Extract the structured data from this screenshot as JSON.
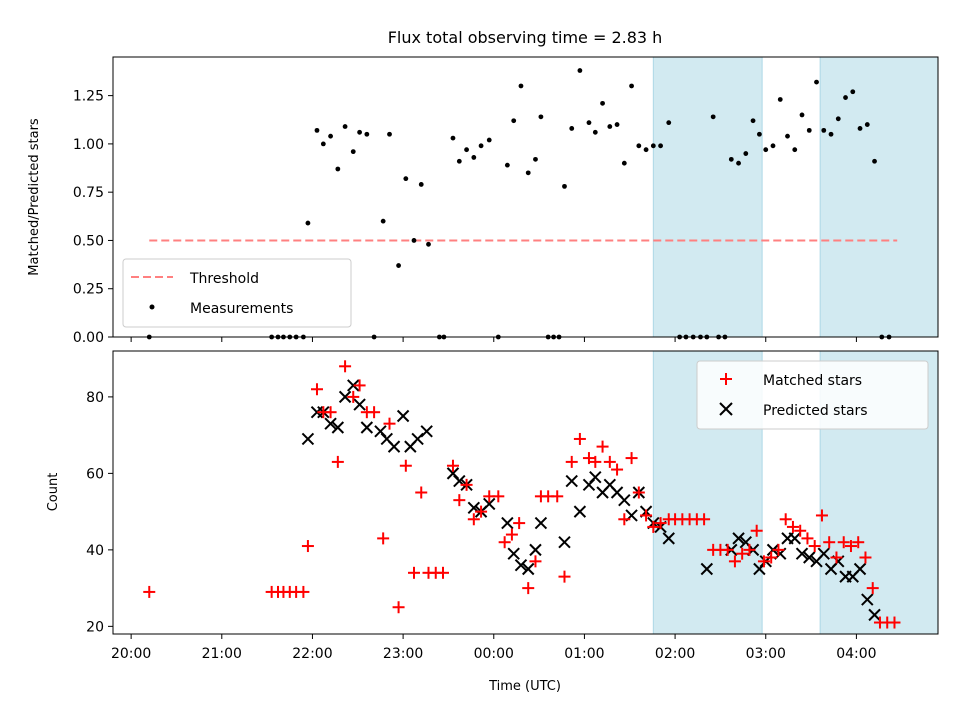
{
  "chart_data": [
    {
      "type": "scatter",
      "title": "Flux total observing time = 2.83 h",
      "ylabel": "Matched/Predicted stars",
      "xlabel": "",
      "x_unit": "hours UTC (continuing past midnight as 24+)",
      "xlim": [
        19.8,
        28.9
      ],
      "ylim": [
        0,
        1.45
      ],
      "yticks": [
        0,
        0.25,
        0.5,
        0.75,
        1.0,
        1.25
      ],
      "ytick_labels": [
        "0.00",
        "0.25",
        "0.50",
        "0.75",
        "1.00",
        "1.25"
      ],
      "shaded_intervals": [
        [
          25.76,
          26.96
        ],
        [
          27.6,
          29.27
        ]
      ],
      "shade_color": "#add8e6",
      "legend": {
        "position": "lower-left",
        "entries": [
          {
            "label": "Threshold",
            "color": "#ff8080",
            "style": "dashed"
          },
          {
            "label": "Measurements",
            "color": "#000000",
            "style": "dot"
          }
        ]
      },
      "threshold": {
        "name": "Threshold",
        "y": 0.5,
        "x_range": [
          20.2,
          28.45
        ],
        "color": "#ff8080"
      },
      "series": [
        {
          "name": "Measurements",
          "color": "#000000",
          "points": [
            [
              20.2,
              0
            ],
            [
              21.55,
              0
            ],
            [
              21.62,
              0
            ],
            [
              21.68,
              0
            ],
            [
              21.75,
              0
            ],
            [
              21.82,
              0
            ],
            [
              21.9,
              0
            ],
            [
              21.95,
              0.59
            ],
            [
              22.05,
              1.07
            ],
            [
              22.12,
              1.0
            ],
            [
              22.2,
              1.04
            ],
            [
              22.28,
              0.87
            ],
            [
              22.36,
              1.09
            ],
            [
              22.45,
              0.96
            ],
            [
              22.52,
              1.06
            ],
            [
              22.6,
              1.05
            ],
            [
              22.68,
              0
            ],
            [
              22.78,
              0.6
            ],
            [
              22.85,
              1.05
            ],
            [
              22.95,
              0.37
            ],
            [
              23.03,
              0.82
            ],
            [
              23.12,
              0.5
            ],
            [
              23.2,
              0.79
            ],
            [
              23.28,
              0.48
            ],
            [
              23.4,
              0
            ],
            [
              23.45,
              0
            ],
            [
              23.55,
              1.03
            ],
            [
              23.62,
              0.91
            ],
            [
              23.7,
              0.97
            ],
            [
              23.78,
              0.93
            ],
            [
              23.86,
              0.99
            ],
            [
              23.95,
              1.02
            ],
            [
              24.05,
              0
            ],
            [
              24.15,
              0.89
            ],
            [
              24.22,
              1.12
            ],
            [
              24.3,
              1.3
            ],
            [
              24.38,
              0.85
            ],
            [
              24.46,
              0.92
            ],
            [
              24.52,
              1.14
            ],
            [
              24.6,
              0
            ],
            [
              24.66,
              0
            ],
            [
              24.72,
              0
            ],
            [
              24.78,
              0.78
            ],
            [
              24.86,
              1.08
            ],
            [
              24.95,
              1.38
            ],
            [
              25.05,
              1.11
            ],
            [
              25.12,
              1.06
            ],
            [
              25.2,
              1.21
            ],
            [
              25.28,
              1.09
            ],
            [
              25.36,
              1.1
            ],
            [
              25.44,
              0.9
            ],
            [
              25.52,
              1.3
            ],
            [
              25.6,
              0.99
            ],
            [
              25.68,
              0.97
            ],
            [
              25.76,
              0.99
            ],
            [
              25.84,
              0.99
            ],
            [
              25.93,
              1.11
            ],
            [
              26.05,
              0
            ],
            [
              26.12,
              0
            ],
            [
              26.2,
              0
            ],
            [
              26.28,
              0
            ],
            [
              26.35,
              0
            ],
            [
              26.42,
              1.14
            ],
            [
              26.48,
              0
            ],
            [
              26.55,
              0
            ],
            [
              26.62,
              0.92
            ],
            [
              26.7,
              0.9
            ],
            [
              26.78,
              0.95
            ],
            [
              26.86,
              1.12
            ],
            [
              26.93,
              1.05
            ],
            [
              27.0,
              0.97
            ],
            [
              27.08,
              0.99
            ],
            [
              27.16,
              1.23
            ],
            [
              27.24,
              1.04
            ],
            [
              27.32,
              0.97
            ],
            [
              27.4,
              1.15
            ],
            [
              27.48,
              1.07
            ],
            [
              27.56,
              1.32
            ],
            [
              27.64,
              1.07
            ],
            [
              27.72,
              1.05
            ],
            [
              27.8,
              1.13
            ],
            [
              27.88,
              1.24
            ],
            [
              27.96,
              1.27
            ],
            [
              28.04,
              1.08
            ],
            [
              28.12,
              1.1
            ],
            [
              28.2,
              0.91
            ],
            [
              28.28,
              0
            ],
            [
              28.36,
              0
            ]
          ]
        }
      ]
    },
    {
      "type": "scatter",
      "title": "",
      "xlabel": "Time (UTC)",
      "ylabel": "Count",
      "x_unit": "hours UTC (continuing past midnight as 24+)",
      "xlim": [
        19.8,
        28.9
      ],
      "ylim": [
        18,
        92
      ],
      "yticks": [
        20,
        40,
        60,
        80
      ],
      "xticks": [
        20,
        21,
        22,
        23,
        24,
        25,
        26,
        27,
        28
      ],
      "xtick_labels": [
        "20:00",
        "21:00",
        "22:00",
        "23:00",
        "00:00",
        "01:00",
        "02:00",
        "03:00",
        "04:00"
      ],
      "shaded_intervals": [
        [
          25.76,
          26.96
        ],
        [
          27.6,
          29.27
        ]
      ],
      "shade_color": "#add8e6",
      "legend": {
        "position": "top-right",
        "entries": [
          {
            "label": "Matched stars",
            "color": "#ff0000",
            "marker": "+"
          },
          {
            "label": "Predicted stars",
            "color": "#000000",
            "marker": "x"
          }
        ]
      },
      "series": [
        {
          "name": "Matched stars",
          "color": "#ff0000",
          "marker": "+",
          "points": [
            [
              20.2,
              29
            ],
            [
              21.55,
              29
            ],
            [
              21.62,
              29
            ],
            [
              21.68,
              29
            ],
            [
              21.75,
              29
            ],
            [
              21.82,
              29
            ],
            [
              21.9,
              29
            ],
            [
              21.95,
              41
            ],
            [
              22.05,
              82
            ],
            [
              22.12,
              76
            ],
            [
              22.2,
              76
            ],
            [
              22.28,
              63
            ],
            [
              22.36,
              88
            ],
            [
              22.45,
              80
            ],
            [
              22.52,
              83
            ],
            [
              22.6,
              76
            ],
            [
              22.68,
              76
            ],
            [
              22.78,
              43
            ],
            [
              22.85,
              73
            ],
            [
              22.95,
              25
            ],
            [
              23.03,
              62
            ],
            [
              23.12,
              34
            ],
            [
              23.2,
              55
            ],
            [
              23.28,
              34
            ],
            [
              23.36,
              34
            ],
            [
              23.44,
              34
            ],
            [
              23.55,
              62
            ],
            [
              23.62,
              53
            ],
            [
              23.7,
              57
            ],
            [
              23.78,
              48
            ],
            [
              23.86,
              50
            ],
            [
              23.95,
              54
            ],
            [
              24.05,
              54
            ],
            [
              24.12,
              42
            ],
            [
              24.2,
              44
            ],
            [
              24.28,
              47
            ],
            [
              24.38,
              30
            ],
            [
              24.46,
              37
            ],
            [
              24.52,
              54
            ],
            [
              24.6,
              54
            ],
            [
              24.7,
              54
            ],
            [
              24.78,
              33
            ],
            [
              24.86,
              63
            ],
            [
              24.95,
              69
            ],
            [
              25.05,
              64
            ],
            [
              25.12,
              63
            ],
            [
              25.2,
              67
            ],
            [
              25.28,
              63
            ],
            [
              25.36,
              61
            ],
            [
              25.44,
              48
            ],
            [
              25.52,
              64
            ],
            [
              25.6,
              55
            ],
            [
              25.68,
              49
            ],
            [
              25.76,
              46
            ],
            [
              25.84,
              47
            ],
            [
              25.93,
              48
            ],
            [
              26.0,
              48
            ],
            [
              26.08,
              48
            ],
            [
              26.16,
              48
            ],
            [
              26.24,
              48
            ],
            [
              26.32,
              48
            ],
            [
              26.42,
              40
            ],
            [
              26.5,
              40
            ],
            [
              26.58,
              40
            ],
            [
              26.66,
              37
            ],
            [
              26.74,
              39
            ],
            [
              26.82,
              40
            ],
            [
              26.9,
              45
            ],
            [
              26.98,
              37
            ],
            [
              27.06,
              38
            ],
            [
              27.14,
              40
            ],
            [
              27.22,
              48
            ],
            [
              27.3,
              46
            ],
            [
              27.38,
              45
            ],
            [
              27.46,
              43
            ],
            [
              27.54,
              41
            ],
            [
              27.62,
              49
            ],
            [
              27.7,
              42
            ],
            [
              27.78,
              38
            ],
            [
              27.86,
              42
            ],
            [
              27.94,
              41
            ],
            [
              28.02,
              42
            ],
            [
              28.1,
              38
            ],
            [
              28.18,
              30
            ],
            [
              28.26,
              21
            ],
            [
              28.34,
              21
            ],
            [
              28.42,
              21
            ]
          ]
        },
        {
          "name": "Predicted stars",
          "color": "#000000",
          "marker": "x",
          "points": [
            [
              21.95,
              69
            ],
            [
              22.05,
              76
            ],
            [
              22.12,
              76
            ],
            [
              22.2,
              73
            ],
            [
              22.28,
              72
            ],
            [
              22.36,
              80
            ],
            [
              22.45,
              83
            ],
            [
              22.52,
              78
            ],
            [
              22.6,
              72
            ],
            [
              22.75,
              71
            ],
            [
              22.82,
              69
            ],
            [
              22.9,
              67
            ],
            [
              23.0,
              75
            ],
            [
              23.08,
              67
            ],
            [
              23.16,
              69
            ],
            [
              23.26,
              71
            ],
            [
              23.55,
              60
            ],
            [
              23.62,
              58
            ],
            [
              23.7,
              57
            ],
            [
              23.78,
              51
            ],
            [
              23.86,
              50
            ],
            [
              23.95,
              52
            ],
            [
              24.15,
              47
            ],
            [
              24.22,
              39
            ],
            [
              24.3,
              36
            ],
            [
              24.38,
              35
            ],
            [
              24.46,
              40
            ],
            [
              24.52,
              47
            ],
            [
              24.78,
              42
            ],
            [
              24.86,
              58
            ],
            [
              24.95,
              50
            ],
            [
              25.05,
              57
            ],
            [
              25.12,
              59
            ],
            [
              25.2,
              55
            ],
            [
              25.28,
              57
            ],
            [
              25.36,
              55
            ],
            [
              25.44,
              53
            ],
            [
              25.52,
              49
            ],
            [
              25.6,
              55
            ],
            [
              25.68,
              50
            ],
            [
              25.76,
              47
            ],
            [
              25.84,
              46
            ],
            [
              25.93,
              43
            ],
            [
              26.35,
              35
            ],
            [
              26.62,
              40
            ],
            [
              26.7,
              43
            ],
            [
              26.78,
              42
            ],
            [
              26.86,
              40
            ],
            [
              26.93,
              35
            ],
            [
              27.0,
              37
            ],
            [
              27.08,
              40
            ],
            [
              27.16,
              39
            ],
            [
              27.24,
              43
            ],
            [
              27.32,
              43
            ],
            [
              27.4,
              39
            ],
            [
              27.48,
              38
            ],
            [
              27.56,
              37
            ],
            [
              27.64,
              39
            ],
            [
              27.72,
              35
            ],
            [
              27.8,
              37
            ],
            [
              27.88,
              33
            ],
            [
              27.96,
              33
            ],
            [
              28.04,
              35
            ],
            [
              28.12,
              27
            ],
            [
              28.2,
              23
            ]
          ]
        }
      ]
    }
  ]
}
